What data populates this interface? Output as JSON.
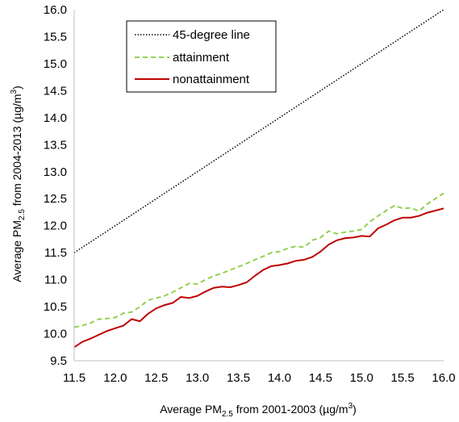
{
  "chart_data": {
    "type": "line",
    "xlabel": {
      "prefix": "Average PM",
      "sub": "2.5",
      "suffix": " from 2001-2003 (µg/m",
      "sup": "3",
      "end": ")"
    },
    "ylabel": {
      "prefix": "Average PM",
      "sub": "2.5",
      "suffix": " from 2004-2013 (µg/m",
      "sup": "3",
      "end": ")"
    },
    "xlim": [
      11.5,
      16.0
    ],
    "ylim": [
      9.5,
      16.0
    ],
    "x_ticks": [
      "11.5",
      "12.0",
      "12.5",
      "13.0",
      "13.5",
      "14.0",
      "14.5",
      "15.0",
      "15.5",
      "16.0"
    ],
    "y_ticks": [
      "9.5",
      "10.0",
      "10.5",
      "11.0",
      "11.5",
      "12.0",
      "12.5",
      "13.0",
      "13.5",
      "14.0",
      "14.5",
      "15.0",
      "15.5",
      "16.0"
    ],
    "grid": false,
    "legend_position": "top-left",
    "series": [
      {
        "name": "45-degree line",
        "style": "dotted",
        "color": "#000000",
        "x": [
          11.5,
          16.0
        ],
        "y": [
          11.5,
          16.0
        ]
      },
      {
        "name": "attainment",
        "style": "dashed",
        "color": "#92d050",
        "x": [
          11.5,
          11.6,
          11.7,
          11.8,
          11.9,
          12.0,
          12.1,
          12.2,
          12.3,
          12.4,
          12.5,
          12.6,
          12.7,
          12.8,
          12.9,
          13.0,
          13.1,
          13.2,
          13.3,
          13.4,
          13.5,
          13.6,
          13.7,
          13.8,
          13.9,
          14.0,
          14.1,
          14.2,
          14.3,
          14.4,
          14.5,
          14.6,
          14.7,
          14.8,
          14.9,
          15.0,
          15.1,
          15.2,
          15.3,
          15.4,
          15.5,
          15.6,
          15.7,
          15.8,
          15.9,
          16.0
        ],
        "y": [
          10.12,
          10.15,
          10.2,
          10.27,
          10.28,
          10.3,
          10.38,
          10.4,
          10.5,
          10.62,
          10.66,
          10.7,
          10.77,
          10.85,
          10.93,
          10.92,
          11.0,
          11.07,
          11.12,
          11.18,
          11.24,
          11.3,
          11.37,
          11.43,
          11.5,
          11.52,
          11.58,
          11.62,
          11.6,
          11.73,
          11.78,
          11.9,
          11.85,
          11.88,
          11.9,
          11.93,
          12.07,
          12.18,
          12.28,
          12.37,
          12.32,
          12.33,
          12.27,
          12.4,
          12.5,
          12.6
        ]
      },
      {
        "name": "nonattainment",
        "style": "solid",
        "color": "#c00000",
        "x": [
          11.5,
          11.6,
          11.7,
          11.8,
          11.9,
          12.0,
          12.1,
          12.2,
          12.3,
          12.4,
          12.5,
          12.6,
          12.7,
          12.8,
          12.9,
          13.0,
          13.1,
          13.2,
          13.3,
          13.4,
          13.5,
          13.6,
          13.7,
          13.8,
          13.9,
          14.0,
          14.1,
          14.2,
          14.3,
          14.4,
          14.5,
          14.6,
          14.7,
          14.8,
          14.9,
          15.0,
          15.1,
          15.2,
          15.3,
          15.4,
          15.5,
          15.6,
          15.7,
          15.8,
          15.9,
          16.0
        ],
        "y": [
          9.75,
          9.85,
          9.91,
          9.98,
          10.05,
          10.1,
          10.15,
          10.27,
          10.23,
          10.37,
          10.47,
          10.53,
          10.57,
          10.68,
          10.66,
          10.7,
          10.78,
          10.85,
          10.87,
          10.86,
          10.9,
          10.95,
          11.07,
          11.18,
          11.25,
          11.27,
          11.3,
          11.35,
          11.37,
          11.42,
          11.52,
          11.65,
          11.73,
          11.77,
          11.78,
          11.81,
          11.8,
          11.95,
          12.02,
          12.1,
          12.15,
          12.15,
          12.18,
          12.24,
          12.28,
          12.32
        ]
      }
    ]
  }
}
